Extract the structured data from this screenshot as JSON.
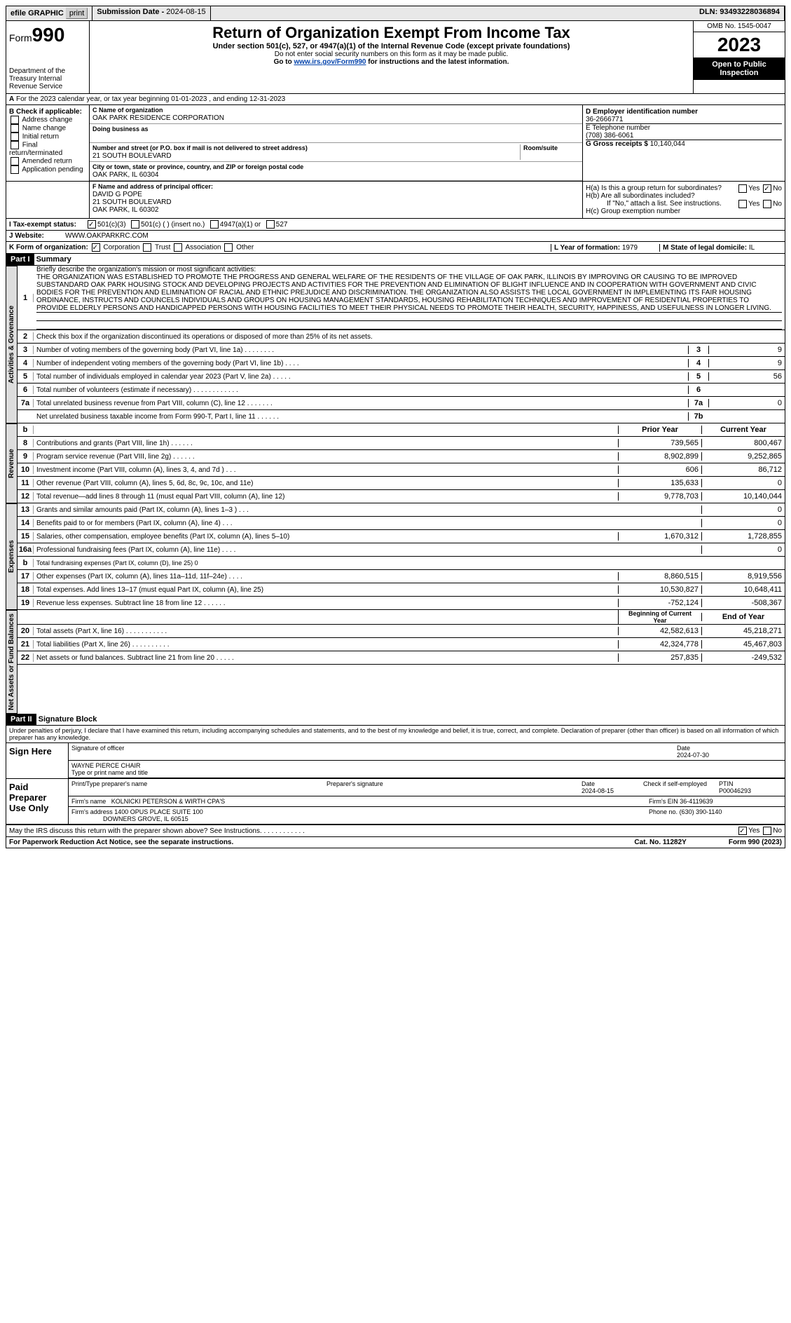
{
  "topbar": {
    "efile": "efile GRAPHIC",
    "print": "print",
    "subdate_lbl": "Submission Date - ",
    "subdate": "2024-08-15",
    "dln_lbl": "DLN: ",
    "dln": "93493228036894"
  },
  "header": {
    "form_lbl": "Form",
    "form_num": "990",
    "title": "Return of Organization Exempt From Income Tax",
    "sub1": "Under section 501(c), 527, or 4947(a)(1) of the Internal Revenue Code (except private foundations)",
    "sub2": "Do not enter social security numbers on this form as it may be made public.",
    "sub3a": "Go to ",
    "sub3_link": "www.irs.gov/Form990",
    "sub3b": " for instructions and the latest information.",
    "dept": "Department of the Treasury\nInternal Revenue Service",
    "omb": "OMB No. 1545-0047",
    "year": "2023",
    "open": "Open to Public Inspection"
  },
  "periodA": "For the 2023 calendar year, or tax year beginning 01-01-2023   , and ending 12-31-2023",
  "boxB": {
    "hdr": "B Check if applicable:",
    "opts": [
      "Address change",
      "Name change",
      "Initial return",
      "Final return/terminated",
      "Amended return",
      "Application pending"
    ]
  },
  "boxC": {
    "name_lbl": "C Name of organization",
    "name": "OAK PARK RESIDENCE CORPORATION",
    "dba_lbl": "Doing business as",
    "dba": "",
    "street_lbl": "Number and street (or P.O. box if mail is not delivered to street address)",
    "street": "21 SOUTH BOULEVARD",
    "room_lbl": "Room/suite",
    "city_lbl": "City or town, state or province, country, and ZIP or foreign postal code",
    "city": "OAK PARK, IL  60304"
  },
  "boxD": {
    "lbl": "D Employer identification number",
    "val": "36-2666771"
  },
  "boxE": {
    "lbl": "E Telephone number",
    "val": "(708) 386-6061"
  },
  "boxG": {
    "lbl": "G Gross receipts $",
    "val": "10,140,044"
  },
  "boxF": {
    "lbl": "F  Name and address of principal officer:",
    "lines": [
      "DAVID G POPE",
      "21 SOUTH BOULEVARD",
      "OAK PARK, IL  60302"
    ]
  },
  "boxH": {
    "a": "H(a)  Is this a group return for subordinates?",
    "b": "H(b)  Are all subordinates included?",
    "note": "If \"No,\" attach a list. See instructions.",
    "c": "H(c)  Group exemption number",
    "yes": "Yes",
    "no": "No"
  },
  "boxI": {
    "lbl": "I    Tax-exempt status:",
    "o1": "501(c)(3)",
    "o2": "501(c) (  ) (insert no.)",
    "o3": "4947(a)(1) or",
    "o4": "527"
  },
  "boxJ": {
    "lbl": "J   Website:",
    "val": "WWW.OAKPARKRC.COM"
  },
  "boxK": {
    "lbl": "K Form of organization:",
    "opts": [
      "Corporation",
      "Trust",
      "Association",
      "Other"
    ]
  },
  "boxL": {
    "lbl": "L Year of formation: ",
    "val": "1979"
  },
  "boxM": {
    "lbl": "M State of legal domicile: ",
    "val": "IL"
  },
  "part1": {
    "hdr": "Part I",
    "title": "Summary"
  },
  "mission": {
    "lbl": "Briefly describe the organization's mission or most significant activities:",
    "text": "THE ORGANIZATION WAS ESTABLISHED TO PROMOTE THE PROGRESS AND GENERAL WELFARE OF THE RESIDENTS OF THE VILLAGE OF OAK PARK, ILLINOIS BY IMPROVING OR CAUSING TO BE IMPROVED SUBSTANDARD OAK PARK HOUSING STOCK AND DEVELOPING PROJECTS AND ACTIVITIES FOR THE PREVENTION AND ELIMINATION OF BLIGHT INFLUENCE AND IN COOPERATION WITH GOVERNMENT AND CIVIC BODIES FOR THE PREVENTION AND ELIMINATION OF RACIAL AND ETHNIC PREJUDICE AND DISCRIMINATION. THE ORGANIZATION ALSO ASSISTS THE LOCAL GOVERNMENT IN IMPLEMENTING ITS FAIR HOUSING ORDINANCE, INSTRUCTS AND COUNCELS INDIVIDUALS AND GROUPS ON HOUSING MANAGEMENT STANDARDS, HOUSING REHABILITATION TECHNIQUES AND IMPROVEMENT OF RESIDENTIAL PROPERTIES TO PROVIDE ELDERLY PERSONS AND HANDICAPPED PERSONS WITH HOUSING FACILITIES TO MEET THEIR PHYSICAL NEEDS TO PROMOTE THEIR HEALTH, SECURITY, HAPPINESS, AND USEFULNESS IN LONGER LIVING."
  },
  "govlines": [
    {
      "n": "2",
      "d": "Check this box         if the organization discontinued its operations or disposed of more than 25% of its net assets."
    },
    {
      "n": "3",
      "d": "Number of voting members of the governing body (Part VI, line 1a)  .   .   .   .   .   .   .   .",
      "b": "3",
      "v": "9"
    },
    {
      "n": "4",
      "d": "Number of independent voting members of the governing body (Part VI, line 1b)  .   .   .   .",
      "b": "4",
      "v": "9"
    },
    {
      "n": "5",
      "d": "Total number of individuals employed in calendar year 2023 (Part V, line 2a)  .   .   .   .   .",
      "b": "5",
      "v": "56"
    },
    {
      "n": "6",
      "d": "Total number of volunteers (estimate if necessary)  .   .   .   .   .   .   .   .   .   .   .   .",
      "b": "6",
      "v": ""
    },
    {
      "n": "7a",
      "d": "Total unrelated business revenue from Part VIII, column (C), line 12  .   .   .   .   .   .   .",
      "b": "7a",
      "v": "0"
    },
    {
      "n": "",
      "d": "Net unrelated business taxable income from Form 990-T, Part I, line 11  .   .   .   .   .   .",
      "b": "7b",
      "v": ""
    }
  ],
  "colhdrs": {
    "prior": "Prior Year",
    "current": "Current Year",
    "boy": "Beginning of Current Year",
    "eoy": "End of Year"
  },
  "revenue": [
    {
      "n": "8",
      "d": "Contributions and grants (Part VIII, line 1h)  .   .   .   .   .   .",
      "p": "739,565",
      "c": "800,467"
    },
    {
      "n": "9",
      "d": "Program service revenue (Part VIII, line 2g)  .   .   .   .   .   .",
      "p": "8,902,899",
      "c": "9,252,865"
    },
    {
      "n": "10",
      "d": "Investment income (Part VIII, column (A), lines 3, 4, and 7d )  .   .   .",
      "p": "606",
      "c": "86,712"
    },
    {
      "n": "11",
      "d": "Other revenue (Part VIII, column (A), lines 5, 6d, 8c, 9c, 10c, and 11e)",
      "p": "135,633",
      "c": "0"
    },
    {
      "n": "12",
      "d": "Total revenue—add lines 8 through 11 (must equal Part VIII, column (A), line 12)",
      "p": "9,778,703",
      "c": "10,140,044"
    }
  ],
  "expenses": [
    {
      "n": "13",
      "d": "Grants and similar amounts paid (Part IX, column (A), lines 1–3 )  .   .   .",
      "p": "",
      "c": "0"
    },
    {
      "n": "14",
      "d": "Benefits paid to or for members (Part IX, column (A), line 4)  .   .   .",
      "p": "",
      "c": "0"
    },
    {
      "n": "15",
      "d": "Salaries, other compensation, employee benefits (Part IX, column (A), lines 5–10)",
      "p": "1,670,312",
      "c": "1,728,855"
    },
    {
      "n": "16a",
      "d": "Professional fundraising fees (Part IX, column (A), line 11e)  .   .   .   .",
      "p": "",
      "c": "0"
    },
    {
      "n": "b",
      "d": "Total fundraising expenses (Part IX, column (D), line 25) 0",
      "gray": true
    },
    {
      "n": "17",
      "d": "Other expenses (Part IX, column (A), lines 11a–11d, 11f–24e)  .   .   .   .",
      "p": "8,860,515",
      "c": "8,919,556"
    },
    {
      "n": "18",
      "d": "Total expenses. Add lines 13–17 (must equal Part IX, column (A), line 25)",
      "p": "10,530,827",
      "c": "10,648,411"
    },
    {
      "n": "19",
      "d": "Revenue less expenses. Subtract line 18 from line 12  .   .   .   .   .   .",
      "p": "-752,124",
      "c": "-508,367"
    }
  ],
  "netassets": [
    {
      "n": "20",
      "d": "Total assets (Part X, line 16)  .   .   .   .   .   .   .   .   .   .   .",
      "p": "42,582,613",
      "c": "45,218,271"
    },
    {
      "n": "21",
      "d": "Total liabilities (Part X, line 26)  .   .   .   .   .   .   .   .   .   .",
      "p": "42,324,778",
      "c": "45,467,803"
    },
    {
      "n": "22",
      "d": "Net assets or fund balances. Subtract line 21 from line 20  .   .   .   .   .",
      "p": "257,835",
      "c": "-249,532"
    }
  ],
  "vtabs": {
    "gov": "Activities & Govenance",
    "rev": "Revenue",
    "exp": "Expenses",
    "na": "Net Assets or Fund Balances"
  },
  "part2": {
    "hdr": "Part II",
    "title": "Signature Block",
    "decl": "Under penalties of perjury, I declare that I have examined this return, including accompanying schedules and statements, and to the best of my knowledge and belief, it is true, correct, and complete. Declaration of preparer (other than officer) is based on all information of which preparer has any knowledge."
  },
  "sign": {
    "here": "Sign Here",
    "sig_lbl": "Signature of officer",
    "date_lbl": "Date",
    "date": "2024-07-30",
    "name": "WAYNE PIERCE CHAIR",
    "name_lbl": "Type or print name and title"
  },
  "prep": {
    "hdr": "Paid Preparer Use Only",
    "pname_lbl": "Print/Type preparer's name",
    "psig_lbl": "Preparer's signature",
    "pdate_lbl": "Date",
    "pdate": "2024-08-15",
    "chk_lbl": "Check          if self-employed",
    "ptin_lbl": "PTIN",
    "ptin": "P00046293",
    "firm_lbl": "Firm's name",
    "firm": "KOLNICKI PETERSON & WIRTH CPA'S",
    "ein_lbl": "Firm's EIN",
    "ein": "36-4119639",
    "addr_lbl": "Firm's address",
    "addr1": "1400 OPUS PLACE SUITE 100",
    "addr2": "DOWNERS GROVE, IL  60515",
    "phone_lbl": "Phone no.",
    "phone": "(630) 390-1140"
  },
  "discuss": "May the IRS discuss this return with the preparer shown above? See Instructions.  .   .   .   .   .   .   .   .   .   .   .",
  "footer": {
    "pra": "For Paperwork Reduction Act Notice, see the separate instructions.",
    "cat": "Cat. No. 11282Y",
    "form": "Form 990 (2023)"
  }
}
